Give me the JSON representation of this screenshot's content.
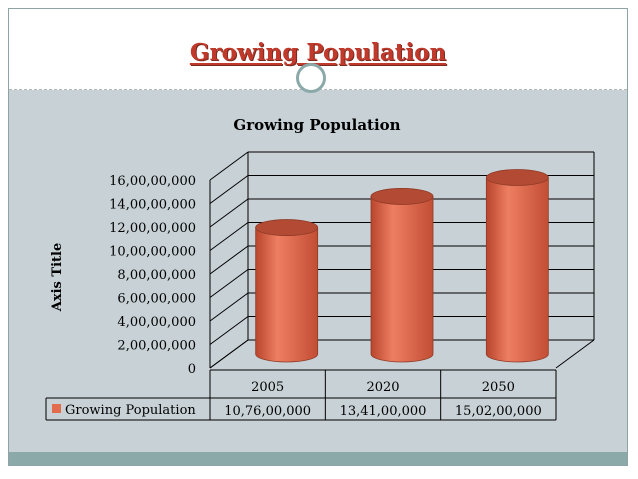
{
  "slide": {
    "title": "Growing Population"
  },
  "chart_data": {
    "type": "bar",
    "title": "Growing Population",
    "ylabel": "Axis Title",
    "xlabel": "",
    "categories": [
      "2005",
      "2020",
      "2050"
    ],
    "series": [
      {
        "name": "Growing Population",
        "values": [
          107600000,
          134100000,
          150200000
        ],
        "value_labels": [
          "10,76,00,000",
          "13,41,00,000",
          "15,02,00,000"
        ]
      }
    ],
    "ylim": [
      0,
      160000000
    ],
    "yticks": [
      0,
      20000000,
      40000000,
      60000000,
      80000000,
      100000000,
      120000000,
      140000000,
      160000000
    ],
    "ytick_labels": [
      "0",
      "2,00,00,000",
      "4,00,00,000",
      "6,00,00,000",
      "8,00,00,000",
      "10,00,00,000",
      "12,00,00,000",
      "14,00,00,000",
      "16,00,00,000"
    ],
    "style": "3d-cylinder",
    "data_table": true,
    "grid": true,
    "colors": {
      "bar": "#e36c4f",
      "bar_dark": "#b34a33",
      "grid": "#000000"
    }
  }
}
